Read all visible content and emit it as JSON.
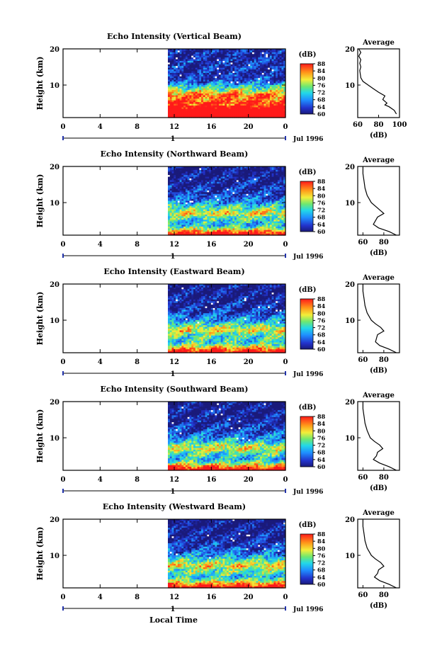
{
  "chart_data": [
    {
      "type": "heatmap",
      "title": "Echo Intensity (Vertical Beam)",
      "ylabel": "Height (km)",
      "ylim": [
        1,
        20
      ],
      "yticks": [
        "20",
        "10"
      ],
      "xticks": [
        "0",
        "4",
        "8",
        "12",
        "16",
        "20",
        "0"
      ],
      "date_label": "1",
      "month_label": "Jul 1996",
      "colorbar": {
        "unit": "(dB)",
        "ticks": [
          "88",
          "84",
          "80",
          "76",
          "72",
          "68",
          "64",
          "60"
        ]
      },
      "average": {
        "title": "Average",
        "xlabel": "(dB)",
        "xticks": [
          "60",
          "80",
          "100"
        ],
        "xlim": [
          60,
          100
        ],
        "profile": [
          [
            97,
            2
          ],
          [
            95,
            3
          ],
          [
            90,
            4
          ],
          [
            86,
            4.5
          ],
          [
            88,
            5
          ],
          [
            84,
            6
          ],
          [
            86,
            7
          ],
          [
            80,
            8
          ],
          [
            75,
            9
          ],
          [
            70,
            10
          ],
          [
            65,
            11
          ],
          [
            63,
            12
          ],
          [
            62,
            14
          ],
          [
            63,
            15
          ],
          [
            62,
            16
          ],
          [
            63,
            17
          ],
          [
            61,
            18
          ],
          [
            63,
            19
          ],
          [
            61,
            20
          ]
        ]
      },
      "data_start_hour": 11.5
    },
    {
      "type": "heatmap",
      "title": "Echo Intensity (Northward Beam)",
      "ylabel": "Height (km)",
      "ylim": [
        1,
        20
      ],
      "yticks": [
        "20",
        "10"
      ],
      "xticks": [
        "0",
        "4",
        "8",
        "12",
        "16",
        "20",
        "0"
      ],
      "date_label": "1",
      "month_label": "Jul 1996",
      "colorbar": {
        "unit": "(dB)",
        "ticks": [
          "88",
          "84",
          "80",
          "76",
          "72",
          "68",
          "64",
          "60"
        ]
      },
      "average": {
        "title": "Average",
        "xlabel": "(dB)",
        "xticks": [
          "60",
          "80"
        ],
        "xlim": [
          55,
          95
        ],
        "profile": [
          [
            92,
            1
          ],
          [
            85,
            2
          ],
          [
            75,
            3
          ],
          [
            70,
            4
          ],
          [
            72,
            5
          ],
          [
            74,
            6
          ],
          [
            80,
            7
          ],
          [
            76,
            8
          ],
          [
            72,
            9
          ],
          [
            68,
            10
          ],
          [
            64,
            12
          ],
          [
            62,
            14
          ],
          [
            61,
            16
          ],
          [
            60,
            18
          ],
          [
            60,
            20
          ]
        ]
      },
      "data_start_hour": 11.5
    },
    {
      "type": "heatmap",
      "title": "Echo Intensity (Eastward Beam)",
      "ylabel": "Height (km)",
      "ylim": [
        1,
        20
      ],
      "yticks": [
        "20",
        "10"
      ],
      "xticks": [
        "0",
        "4",
        "8",
        "12",
        "16",
        "20",
        "0"
      ],
      "date_label": "1",
      "month_label": "Jul 1996",
      "colorbar": {
        "unit": "(dB)",
        "ticks": [
          "88",
          "84",
          "80",
          "76",
          "72",
          "68",
          "64",
          "60"
        ]
      },
      "average": {
        "title": "Average",
        "xlabel": "(dB)",
        "xticks": [
          "60",
          "80"
        ],
        "xlim": [
          55,
          95
        ],
        "profile": [
          [
            92,
            1
          ],
          [
            85,
            2
          ],
          [
            76,
            3
          ],
          [
            72,
            4
          ],
          [
            73,
            5
          ],
          [
            74,
            6
          ],
          [
            80,
            7
          ],
          [
            77,
            8
          ],
          [
            72,
            9
          ],
          [
            68,
            10
          ],
          [
            64,
            12
          ],
          [
            62,
            14
          ],
          [
            61,
            16
          ],
          [
            60,
            18
          ],
          [
            60,
            20
          ]
        ]
      },
      "data_start_hour": 11.5
    },
    {
      "type": "heatmap",
      "title": "Echo Intensity (Southward Beam)",
      "ylabel": "Height (km)",
      "ylim": [
        1,
        20
      ],
      "yticks": [
        "20",
        "10"
      ],
      "xticks": [
        "0",
        "4",
        "8",
        "12",
        "16",
        "20",
        "0"
      ],
      "date_label": "1",
      "month_label": "Jul 1996",
      "colorbar": {
        "unit": "(dB)",
        "ticks": [
          "88",
          "84",
          "80",
          "76",
          "72",
          "68",
          "64",
          "60"
        ]
      },
      "average": {
        "title": "Average",
        "xlabel": "(dB)",
        "xticks": [
          "60",
          "80"
        ],
        "xlim": [
          55,
          95
        ],
        "profile": [
          [
            92,
            1
          ],
          [
            85,
            2
          ],
          [
            76,
            3
          ],
          [
            70,
            4
          ],
          [
            73,
            5
          ],
          [
            74,
            6
          ],
          [
            79,
            7
          ],
          [
            76,
            8
          ],
          [
            71,
            9
          ],
          [
            67,
            10
          ],
          [
            64,
            12
          ],
          [
            62,
            14
          ],
          [
            61,
            16
          ],
          [
            60,
            18
          ],
          [
            60,
            20
          ]
        ]
      },
      "data_start_hour": 11.5
    },
    {
      "type": "heatmap",
      "title": "Echo Intensity (Westward Beam)",
      "ylabel": "Height (km)",
      "ylim": [
        1,
        20
      ],
      "yticks": [
        "20",
        "10"
      ],
      "xticks": [
        "0",
        "4",
        "8",
        "12",
        "16",
        "20",
        "0"
      ],
      "date_label": "1",
      "month_label": "Jul 1996",
      "colorbar": {
        "unit": "(dB)",
        "ticks": [
          "88",
          "84",
          "80",
          "76",
          "72",
          "68",
          "64",
          "60"
        ]
      },
      "average": {
        "title": "Average",
        "xlabel": "(dB)",
        "xticks": [
          "60",
          "80"
        ],
        "xlim": [
          55,
          95
        ],
        "profile": [
          [
            92,
            1
          ],
          [
            85,
            2
          ],
          [
            76,
            3
          ],
          [
            71,
            4
          ],
          [
            74,
            5
          ],
          [
            75,
            6
          ],
          [
            80,
            7
          ],
          [
            77,
            8
          ],
          [
            72,
            9
          ],
          [
            68,
            10
          ],
          [
            64,
            12
          ],
          [
            62,
            14
          ],
          [
            61,
            16
          ],
          [
            60,
            18
          ],
          [
            60,
            20
          ]
        ]
      },
      "data_start_hour": 11.5
    }
  ],
  "footer": {
    "xlabel": "Local Time"
  }
}
